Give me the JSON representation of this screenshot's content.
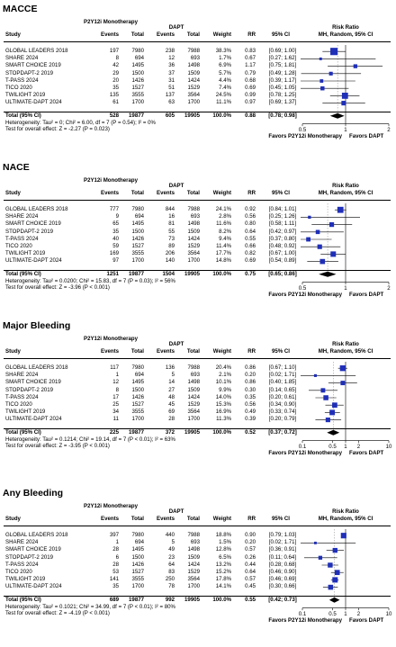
{
  "chart_data": [
    {
      "type": "table",
      "title": "MACCE",
      "group_a": "P2Y12i Monotherapy",
      "group_b": "DAPT",
      "cols": {
        "study": "Study",
        "events": "Events",
        "total": "Total",
        "weight": "Weight",
        "rr": "RR",
        "ci": "95% CI"
      },
      "rr_header": [
        "Risk Ratio",
        "MH, Random, 95% CI"
      ],
      "rows": [
        {
          "study": "GLOBAL LEADERS 2018",
          "e1": "197",
          "t1": "7980",
          "e2": "238",
          "t2": "7988",
          "weight": "38.3%",
          "rr": "0.83",
          "ci": "[0.69; 1.00]",
          "rr_v": 0.83,
          "lo": 0.69,
          "hi": 1.0,
          "w": 38.3
        },
        {
          "study": "SHARE 2024",
          "e1": "8",
          "t1": "694",
          "e2": "12",
          "t2": "693",
          "weight": "1.7%",
          "rr": "0.67",
          "ci": "[0.27; 1.62]",
          "rr_v": 0.67,
          "lo": 0.27,
          "hi": 1.62,
          "w": 1.7
        },
        {
          "study": "SMART CHOICE 2019",
          "e1": "42",
          "t1": "1495",
          "e2": "36",
          "t2": "1498",
          "weight": "6.9%",
          "rr": "1.17",
          "ci": "[0.75; 1.81]",
          "rr_v": 1.17,
          "lo": 0.75,
          "hi": 1.81,
          "w": 6.9
        },
        {
          "study": "STOPDAPT-2 2019",
          "e1": "29",
          "t1": "1500",
          "e2": "37",
          "t2": "1509",
          "weight": "5.7%",
          "rr": "0.79",
          "ci": "[0.49; 1.28]",
          "rr_v": 0.79,
          "lo": 0.49,
          "hi": 1.28,
          "w": 5.7
        },
        {
          "study": "T-PASS 2024",
          "e1": "20",
          "t1": "1426",
          "e2": "31",
          "t2": "1424",
          "weight": "4.4%",
          "rr": "0.68",
          "ci": "[0.39; 1.17]",
          "rr_v": 0.68,
          "lo": 0.39,
          "hi": 1.17,
          "w": 4.4
        },
        {
          "study": "TICO 2020",
          "e1": "35",
          "t1": "1527",
          "e2": "51",
          "t2": "1529",
          "weight": "7.4%",
          "rr": "0.69",
          "ci": "[0.45; 1.05]",
          "rr_v": 0.69,
          "lo": 0.45,
          "hi": 1.05,
          "w": 7.4
        },
        {
          "study": "TWILIGHT 2019",
          "e1": "135",
          "t1": "3555",
          "e2": "137",
          "t2": "3564",
          "weight": "24.5%",
          "rr": "0.99",
          "ci": "[0.78; 1.25]",
          "rr_v": 0.99,
          "lo": 0.78,
          "hi": 1.25,
          "w": 24.5
        },
        {
          "study": "ULTIMATE-DAPT 2024",
          "e1": "61",
          "t1": "1700",
          "e2": "63",
          "t2": "1700",
          "weight": "11.1%",
          "rr": "0.97",
          "ci": "[0.69; 1.37]",
          "rr_v": 0.97,
          "lo": 0.69,
          "hi": 1.37,
          "w": 11.1
        }
      ],
      "total": {
        "study": "Total (95% CI)",
        "e1": "528",
        "t1": "19877",
        "e2": "605",
        "t2": "19905",
        "weight": "100.0%",
        "rr": "0.88",
        "ci": "[0.78; 0.98]",
        "rr_v": 0.88,
        "lo": 0.78,
        "hi": 0.98
      },
      "heterogeneity": "Heterogeneity: Tau² = 0; Chi² = 6.00, df = 7 (P = 0.54); I² = 0%",
      "overall": "Test for overall effect: Z = -2.27 (P = 0.023)",
      "axis": {
        "scale": "log",
        "min": 0.5,
        "max": 2,
        "ticks": [
          0.5,
          1,
          2
        ],
        "tick_labels": [
          "0.5",
          "1",
          "2"
        ]
      },
      "favors": [
        "Favors P2Y12i Monotherapy",
        "Favors DAPT"
      ]
    },
    {
      "type": "table",
      "title": "NACE",
      "group_a": "P2Y12i Monotherapy",
      "group_b": "DAPT",
      "cols": {
        "study": "Study",
        "events": "Events",
        "total": "Total",
        "weight": "Weight",
        "rr": "RR",
        "ci": "95% CI"
      },
      "rr_header": [
        "Risk Ratio",
        "MH, Random, 95% CI"
      ],
      "rows": [
        {
          "study": "GLOBAL LEADERS 2018",
          "e1": "777",
          "t1": "7980",
          "e2": "844",
          "t2": "7988",
          "weight": "24.1%",
          "rr": "0.92",
          "ci": "[0.84; 1.01]",
          "rr_v": 0.92,
          "lo": 0.84,
          "hi": 1.01,
          "w": 24.1
        },
        {
          "study": "SHARE 2024",
          "e1": "9",
          "t1": "694",
          "e2": "16",
          "t2": "693",
          "weight": "2.8%",
          "rr": "0.56",
          "ci": "[0.25; 1.26]",
          "rr_v": 0.56,
          "lo": 0.25,
          "hi": 1.26,
          "w": 2.8
        },
        {
          "study": "SMART CHOICE 2019",
          "e1": "65",
          "t1": "1495",
          "e2": "81",
          "t2": "1498",
          "weight": "11.6%",
          "rr": "0.80",
          "ci": "[0.58; 1.11]",
          "rr_v": 0.8,
          "lo": 0.58,
          "hi": 1.11,
          "w": 11.6
        },
        {
          "study": "STOPDAPT-2 2019",
          "e1": "35",
          "t1": "1500",
          "e2": "55",
          "t2": "1509",
          "weight": "8.2%",
          "rr": "0.64",
          "ci": "[0.42; 0.97]",
          "rr_v": 0.64,
          "lo": 0.42,
          "hi": 0.97,
          "w": 8.2
        },
        {
          "study": "T-PASS 2024",
          "e1": "40",
          "t1": "1426",
          "e2": "73",
          "t2": "1424",
          "weight": "9.4%",
          "rr": "0.55",
          "ci": "[0.37; 0.80]",
          "rr_v": 0.55,
          "lo": 0.37,
          "hi": 0.8,
          "w": 9.4
        },
        {
          "study": "TICO 2020",
          "e1": "59",
          "t1": "1527",
          "e2": "89",
          "t2": "1529",
          "weight": "11.4%",
          "rr": "0.66",
          "ci": "[0.48; 0.92]",
          "rr_v": 0.66,
          "lo": 0.48,
          "hi": 0.92,
          "w": 11.4
        },
        {
          "study": "TWILIGHT 2019",
          "e1": "169",
          "t1": "3555",
          "e2": "206",
          "t2": "3564",
          "weight": "17.7%",
          "rr": "0.82",
          "ci": "[0.67; 1.00]",
          "rr_v": 0.82,
          "lo": 0.67,
          "hi": 1.0,
          "w": 17.7
        },
        {
          "study": "ULTIMATE-DAPT 2024",
          "e1": "97",
          "t1": "1700",
          "e2": "140",
          "t2": "1700",
          "weight": "14.8%",
          "rr": "0.69",
          "ci": "[0.54; 0.89]",
          "rr_v": 0.69,
          "lo": 0.54,
          "hi": 0.89,
          "w": 14.8
        }
      ],
      "total": {
        "study": "Total (95% CI)",
        "e1": "1251",
        "t1": "19877",
        "e2": "1504",
        "t2": "19905",
        "weight": "100.0%",
        "rr": "0.75",
        "ci": "[0.65; 0.86]",
        "rr_v": 0.75,
        "lo": 0.65,
        "hi": 0.86
      },
      "heterogeneity": "Heterogeneity: Tau² = 0.0200; Chi² = 15.83, df = 7 (P = 0.03); I² = 56%",
      "overall": "Test for overall effect: Z = -3.96 (P < 0.001)",
      "axis": {
        "scale": "log",
        "min": 0.5,
        "max": 2,
        "ticks": [
          0.5,
          1,
          2
        ],
        "tick_labels": [
          "0.5",
          "1",
          "2"
        ]
      },
      "favors": [
        "Favors P2Y12i Monotherapy",
        "Favors DAPT"
      ]
    },
    {
      "type": "table",
      "title": "Major Bleeding",
      "group_a": "P2Y12i Monotherapy",
      "group_b": "DAPT",
      "cols": {
        "study": "Study",
        "events": "Events",
        "total": "Total",
        "weight": "Weight",
        "rr": "RR",
        "ci": "95% CI"
      },
      "rr_header": [
        "Risk Ratio",
        "MH, Random, 95% CI"
      ],
      "rows": [
        {
          "study": "GLOBAL LEADERS 2018",
          "e1": "117",
          "t1": "7980",
          "e2": "136",
          "t2": "7988",
          "weight": "20.4%",
          "rr": "0.86",
          "ci": "[0.67; 1.10]",
          "rr_v": 0.86,
          "lo": 0.67,
          "hi": 1.1,
          "w": 20.4
        },
        {
          "study": "SHARE 2024",
          "e1": "1",
          "t1": "694",
          "e2": "5",
          "t2": "693",
          "weight": "2.1%",
          "rr": "0.20",
          "ci": "[0.02; 1.71]",
          "rr_v": 0.2,
          "lo": 0.02,
          "hi": 1.71,
          "w": 2.1
        },
        {
          "study": "SMART CHOICE 2019",
          "e1": "12",
          "t1": "1495",
          "e2": "14",
          "t2": "1498",
          "weight": "10.1%",
          "rr": "0.86",
          "ci": "[0.40; 1.85]",
          "rr_v": 0.86,
          "lo": 0.4,
          "hi": 1.85,
          "w": 10.1
        },
        {
          "study": "STOPDAPT-2 2019",
          "e1": "8",
          "t1": "1500",
          "e2": "27",
          "t2": "1509",
          "weight": "9.9%",
          "rr": "0.30",
          "ci": "[0.14; 0.65]",
          "rr_v": 0.3,
          "lo": 0.14,
          "hi": 0.65,
          "w": 9.9
        },
        {
          "study": "T-PASS 2024",
          "e1": "17",
          "t1": "1426",
          "e2": "48",
          "t2": "1424",
          "weight": "14.0%",
          "rr": "0.35",
          "ci": "[0.20; 0.61]",
          "rr_v": 0.35,
          "lo": 0.2,
          "hi": 0.61,
          "w": 14.0
        },
        {
          "study": "TICO 2020",
          "e1": "25",
          "t1": "1527",
          "e2": "45",
          "t2": "1529",
          "weight": "15.3%",
          "rr": "0.56",
          "ci": "[0.34; 0.90]",
          "rr_v": 0.56,
          "lo": 0.34,
          "hi": 0.9,
          "w": 15.3
        },
        {
          "study": "TWILIGHT 2019",
          "e1": "34",
          "t1": "3555",
          "e2": "69",
          "t2": "3564",
          "weight": "16.9%",
          "rr": "0.49",
          "ci": "[0.33; 0.74]",
          "rr_v": 0.49,
          "lo": 0.33,
          "hi": 0.74,
          "w": 16.9
        },
        {
          "study": "ULTIMATE-DAPT 2024",
          "e1": "11",
          "t1": "1700",
          "e2": "28",
          "t2": "1700",
          "weight": "11.3%",
          "rr": "0.39",
          "ci": "[0.20; 0.79]",
          "rr_v": 0.39,
          "lo": 0.2,
          "hi": 0.79,
          "w": 11.3
        }
      ],
      "total": {
        "study": "Total (95% CI)",
        "e1": "225",
        "t1": "19877",
        "e2": "372",
        "t2": "19905",
        "weight": "100.0%",
        "rr": "0.52",
        "ci": "[0.37; 0.72]",
        "rr_v": 0.52,
        "lo": 0.37,
        "hi": 0.72
      },
      "heterogeneity": "Heterogeneity: Tau² = 0.1214; Chi² = 19.14, df = 7 (P < 0.01); I² = 63%",
      "overall": "Test for overall effect: Z = -3.95 (P < 0.001)",
      "axis": {
        "scale": "log",
        "min": 0.1,
        "max": 10,
        "ticks": [
          0.1,
          0.5,
          1,
          2,
          10
        ],
        "tick_labels": [
          "0.1",
          "0.5",
          "1",
          "2",
          "10"
        ]
      },
      "favors": [
        "Favors P2Y12i Monotherapy",
        "Favors DAPT"
      ]
    },
    {
      "type": "table",
      "title": "Any Bleeding",
      "group_a": "P2Y12i Monotherapy",
      "group_b": "DAPT",
      "cols": {
        "study": "Study",
        "events": "Events",
        "total": "Total",
        "weight": "Weight",
        "rr": "RR",
        "ci": "95% CI"
      },
      "rr_header": [
        "Risk Ratio",
        "MH, Random, 95% CI"
      ],
      "rows": [
        {
          "study": "GLOBAL LEADERS 2018",
          "e1": "397",
          "t1": "7980",
          "e2": "440",
          "t2": "7988",
          "weight": "18.8%",
          "rr": "0.90",
          "ci": "[0.79; 1.03]",
          "rr_v": 0.9,
          "lo": 0.79,
          "hi": 1.03,
          "w": 18.8
        },
        {
          "study": "SHARE 2024",
          "e1": "1",
          "t1": "694",
          "e2": "5",
          "t2": "693",
          "weight": "1.5%",
          "rr": "0.20",
          "ci": "[0.02; 1.71]",
          "rr_v": 0.2,
          "lo": 0.02,
          "hi": 1.71,
          "w": 1.5
        },
        {
          "study": "SMART CHOICE 2019",
          "e1": "28",
          "t1": "1495",
          "e2": "49",
          "t2": "1498",
          "weight": "12.8%",
          "rr": "0.57",
          "ci": "[0.36; 0.91]",
          "rr_v": 0.57,
          "lo": 0.36,
          "hi": 0.91,
          "w": 12.8
        },
        {
          "study": "STOPDAPT-2 2019",
          "e1": "6",
          "t1": "1500",
          "e2": "23",
          "t2": "1509",
          "weight": "6.5%",
          "rr": "0.26",
          "ci": "[0.11; 0.64]",
          "rr_v": 0.26,
          "lo": 0.11,
          "hi": 0.64,
          "w": 6.5
        },
        {
          "study": "T-PASS 2024",
          "e1": "28",
          "t1": "1426",
          "e2": "64",
          "t2": "1424",
          "weight": "13.2%",
          "rr": "0.44",
          "ci": "[0.28; 0.68]",
          "rr_v": 0.44,
          "lo": 0.28,
          "hi": 0.68,
          "w": 13.2
        },
        {
          "study": "TICO 2020",
          "e1": "53",
          "t1": "1527",
          "e2": "83",
          "t2": "1529",
          "weight": "15.2%",
          "rr": "0.64",
          "ci": "[0.46; 0.90]",
          "rr_v": 0.64,
          "lo": 0.46,
          "hi": 0.9,
          "w": 15.2
        },
        {
          "study": "TWILIGHT 2019",
          "e1": "141",
          "t1": "3555",
          "e2": "250",
          "t2": "3564",
          "weight": "17.8%",
          "rr": "0.57",
          "ci": "[0.46; 0.69]",
          "rr_v": 0.57,
          "lo": 0.46,
          "hi": 0.69,
          "w": 17.8
        },
        {
          "study": "ULTIMATE-DAPT 2024",
          "e1": "35",
          "t1": "1700",
          "e2": "78",
          "t2": "1700",
          "weight": "14.1%",
          "rr": "0.45",
          "ci": "[0.30; 0.66]",
          "rr_v": 0.45,
          "lo": 0.3,
          "hi": 0.66,
          "w": 14.1
        }
      ],
      "total": {
        "study": "Total (95% CI)",
        "e1": "689",
        "t1": "19877",
        "e2": "992",
        "t2": "19905",
        "weight": "100.0%",
        "rr": "0.55",
        "ci": "[0.42; 0.73]",
        "rr_v": 0.55,
        "lo": 0.42,
        "hi": 0.73
      },
      "heterogeneity": "Heterogeneity: Tau² = 0.1021; Chi² = 34.99, df = 7 (P < 0.01); I² = 80%",
      "overall": "Test for overall effect: Z = -4.19 (P < 0.001)",
      "axis": {
        "scale": "log",
        "min": 0.1,
        "max": 10,
        "ticks": [
          0.1,
          0.5,
          1,
          2,
          10
        ],
        "tick_labels": [
          "0.1",
          "0.5",
          "1",
          "2",
          "10"
        ]
      },
      "favors": [
        "Favors P2Y12i Monotherapy",
        "Favors DAPT"
      ]
    }
  ],
  "colors": {
    "square": "#1f2fb8",
    "diamond": "#000000",
    "text": "#000000"
  }
}
